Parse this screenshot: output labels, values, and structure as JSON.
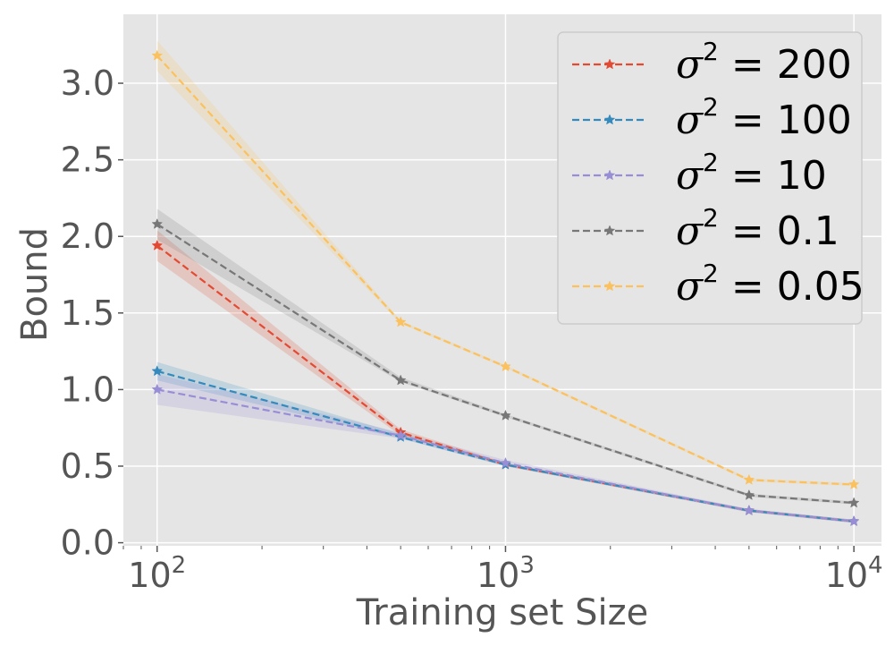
{
  "chart_data": {
    "type": "line",
    "xscale": "log",
    "xlabel": "Training set Size",
    "ylabel": "Bound",
    "xlim": [
      80,
      12000
    ],
    "ylim": [
      -0.02,
      3.45
    ],
    "grid": true,
    "legend_position": "top-right",
    "x": [
      100,
      500,
      1000,
      5000,
      10000
    ],
    "xticks": [
      {
        "value": 100,
        "base": "10",
        "exp": "2"
      },
      {
        "value": 1000,
        "base": "10",
        "exp": "3"
      },
      {
        "value": 10000,
        "base": "10",
        "exp": "4"
      }
    ],
    "yticks": [
      {
        "value": 0.0,
        "label": "0.0"
      },
      {
        "value": 0.5,
        "label": "0.5"
      },
      {
        "value": 1.0,
        "label": "1.0"
      },
      {
        "value": 1.5,
        "label": "1.5"
      },
      {
        "value": 2.0,
        "label": "2.0"
      },
      {
        "value": 2.5,
        "label": "2.5"
      },
      {
        "value": 3.0,
        "label": "3.0"
      }
    ],
    "series": [
      {
        "name": "σ² = 200",
        "sym": "σ",
        "sup": "2",
        "eq": " = 200",
        "color": "#E24A33",
        "values": [
          1.94,
          0.72,
          0.51,
          0.21,
          0.14
        ],
        "lower": [
          1.84,
          0.7,
          0.5,
          0.2,
          0.13
        ],
        "upper": [
          2.04,
          0.74,
          0.52,
          0.22,
          0.15
        ]
      },
      {
        "name": "σ² = 100",
        "sym": "σ",
        "sup": "2",
        "eq": " = 100",
        "color": "#348ABD",
        "values": [
          1.12,
          0.69,
          0.51,
          0.21,
          0.14
        ],
        "lower": [
          1.06,
          0.68,
          0.5,
          0.2,
          0.13
        ],
        "upper": [
          1.18,
          0.71,
          0.52,
          0.22,
          0.15
        ]
      },
      {
        "name": "σ² = 10",
        "sym": "σ",
        "sup": "2",
        "eq": " = 10",
        "color": "#988ED5",
        "values": [
          1.0,
          0.7,
          0.52,
          0.21,
          0.14
        ],
        "lower": [
          0.9,
          0.68,
          0.5,
          0.2,
          0.13
        ],
        "upper": [
          1.1,
          0.72,
          0.54,
          0.22,
          0.15
        ]
      },
      {
        "name": "σ² = 0.1",
        "sym": "σ",
        "sup": "2",
        "eq": " = 0.1",
        "color": "#777777",
        "values": [
          2.08,
          1.06,
          0.83,
          0.31,
          0.26
        ],
        "lower": [
          1.98,
          1.05,
          0.82,
          0.3,
          0.25
        ],
        "upper": [
          2.18,
          1.08,
          0.84,
          0.32,
          0.27
        ]
      },
      {
        "name": "σ² = 0.05",
        "sym": "σ",
        "sup": "2",
        "eq": " = 0.05",
        "color": "#FBC15E",
        "values": [
          3.18,
          1.44,
          1.15,
          0.41,
          0.38
        ],
        "lower": [
          3.08,
          1.43,
          1.14,
          0.4,
          0.37
        ],
        "upper": [
          3.28,
          1.45,
          1.16,
          0.42,
          0.39
        ]
      }
    ]
  }
}
